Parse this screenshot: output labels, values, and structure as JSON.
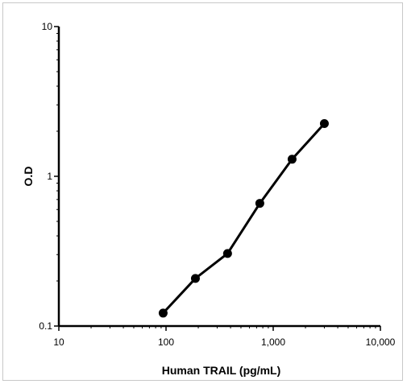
{
  "chart_data": {
    "type": "line",
    "title": "",
    "xlabel": "Human TRAIL (pg/mL)",
    "ylabel": "O.D",
    "x_scale": "log",
    "y_scale": "log",
    "xlim": [
      10,
      10000
    ],
    "ylim": [
      0.1,
      10
    ],
    "x_ticks": [
      10,
      100,
      1000,
      10000
    ],
    "x_tick_labels": [
      "10",
      "100",
      "1,000",
      "10,000"
    ],
    "y_ticks": [
      0.1,
      1,
      10
    ],
    "y_tick_labels": [
      "0.1",
      "1",
      "10"
    ],
    "grid": false,
    "legend": "none",
    "series": [
      {
        "x": [
          94,
          188,
          375,
          750,
          1500,
          3000
        ],
        "y": [
          0.122,
          0.208,
          0.305,
          0.66,
          1.3,
          2.25
        ]
      }
    ],
    "colors": {
      "line": "#000000",
      "marker": "#000000"
    }
  }
}
